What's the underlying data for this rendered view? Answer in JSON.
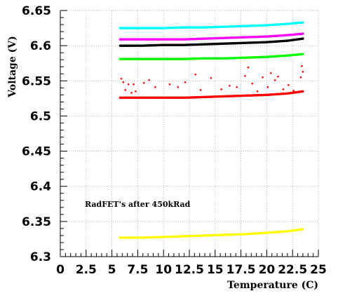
{
  "chart_data": {
    "type": "scatter",
    "title": "",
    "xlabel": "Temperature (C)",
    "ylabel": "Voltage (V)",
    "xlim": [
      0,
      25
    ],
    "ylim": [
      6.3,
      6.65
    ],
    "grid": true,
    "annotation": "RadFET's after 450kRad",
    "x_ticks": [
      0,
      2.5,
      5,
      7.5,
      10,
      12.5,
      15,
      17.5,
      20,
      22.5,
      25
    ],
    "x_tick_labels": [
      "0",
      "2.5",
      "5",
      "7.5",
      "10",
      "12.5",
      "15",
      "17.5",
      "20",
      "22.5",
      "25"
    ],
    "y_ticks": [
      6.3,
      6.35,
      6.4,
      6.45,
      6.5,
      6.55,
      6.6,
      6.65
    ],
    "y_tick_labels": [
      "6.3",
      "6.35",
      "6.4",
      "6.45",
      "6.5",
      "6.55",
      "6.6",
      "6.65"
    ],
    "series": [
      {
        "color": "#00ffff",
        "x": [
          5.8,
          8,
          10,
          12,
          14,
          16,
          18,
          20,
          22,
          23.5
        ],
        "y": [
          6.625,
          6.625,
          6.625,
          6.626,
          6.626,
          6.627,
          6.628,
          6.629,
          6.631,
          6.633
        ]
      },
      {
        "color": "#ff00ff",
        "x": [
          5.8,
          8,
          10,
          12,
          14,
          16,
          18,
          20,
          22,
          23.5
        ],
        "y": [
          6.609,
          6.609,
          6.609,
          6.609,
          6.61,
          6.611,
          6.612,
          6.613,
          6.615,
          6.617
        ]
      },
      {
        "color": "#000000",
        "x": [
          5.8,
          8,
          10,
          12,
          14,
          16,
          18,
          20,
          22,
          23.5
        ],
        "y": [
          6.6,
          6.6,
          6.601,
          6.601,
          6.602,
          6.603,
          6.604,
          6.605,
          6.607,
          6.61
        ]
      },
      {
        "color": "#00ff00",
        "x": [
          5.8,
          8,
          10,
          12,
          14,
          16,
          18,
          20,
          22,
          23.5
        ],
        "y": [
          6.581,
          6.581,
          6.581,
          6.581,
          6.582,
          6.582,
          6.583,
          6.584,
          6.586,
          6.588
        ]
      },
      {
        "color": "#ff0000",
        "x": [
          5.8,
          8,
          10,
          12,
          14,
          16,
          18,
          20,
          22,
          23.5
        ],
        "y": [
          6.526,
          6.526,
          6.526,
          6.526,
          6.527,
          6.528,
          6.529,
          6.53,
          6.532,
          6.535
        ]
      },
      {
        "color": "#ffff00",
        "x": [
          5.8,
          8,
          10,
          12,
          14,
          16,
          18,
          20,
          22,
          23.5
        ],
        "y": [
          6.327,
          6.327,
          6.328,
          6.329,
          6.33,
          6.331,
          6.332,
          6.334,
          6.336,
          6.339
        ]
      }
    ],
    "outliers": {
      "color": "#ff0000",
      "x": [
        5.9,
        6.1,
        6.3,
        6.6,
        6.9,
        7.1,
        7.3,
        8.1,
        8.6,
        9.2,
        10.6,
        11.4,
        12.1,
        13.1,
        13.6,
        14.6,
        15.6,
        16.4,
        17.1,
        17.9,
        18.2,
        18.6,
        19.1,
        19.6,
        20.1,
        20.4,
        20.8,
        21.1,
        21.6,
        22.1,
        22.6,
        23.3,
        23.4,
        23.5
      ],
      "y": [
        6.553,
        6.548,
        6.537,
        6.545,
        6.533,
        6.545,
        6.535,
        6.547,
        6.551,
        6.541,
        6.545,
        6.541,
        6.548,
        6.559,
        6.537,
        6.554,
        6.538,
        6.543,
        6.541,
        6.557,
        6.569,
        6.546,
        6.535,
        6.555,
        6.541,
        6.561,
        6.551,
        6.556,
        6.538,
        6.544,
        6.536,
        6.555,
        6.571,
        6.563
      ]
    }
  }
}
